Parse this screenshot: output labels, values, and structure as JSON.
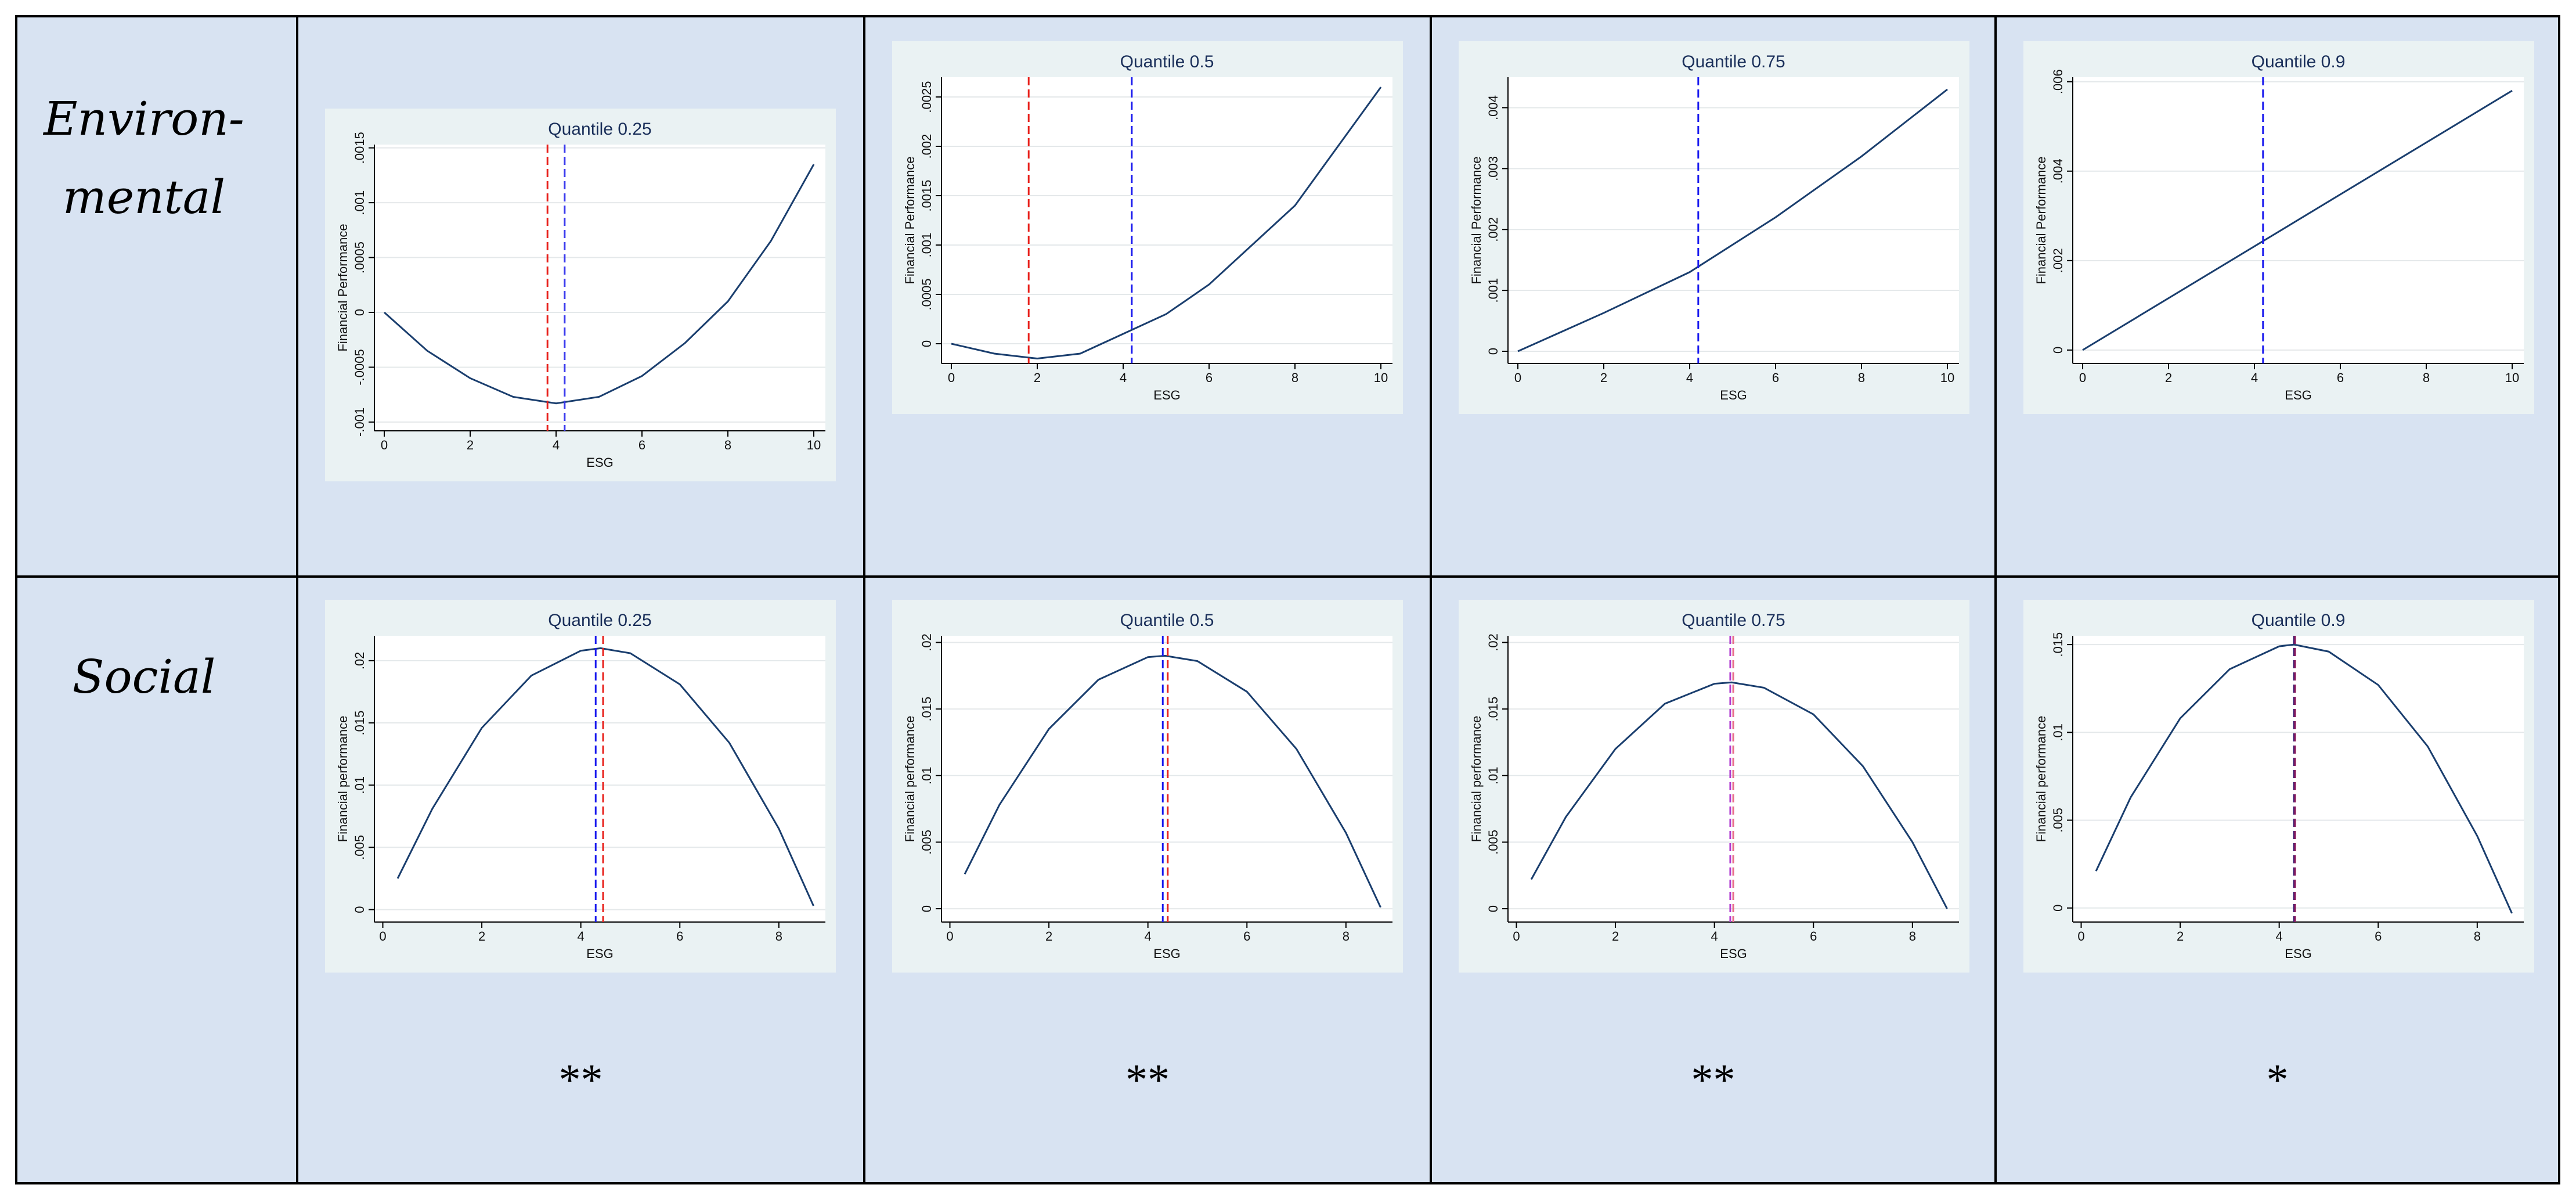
{
  "rows": [
    {
      "label": [
        "Environ-",
        "mental"
      ]
    },
    {
      "label": [
        "Social"
      ],
      "stars": [
        "**",
        "**",
        "**",
        "*"
      ]
    }
  ],
  "chart_data": [
    {
      "type": "line",
      "title": "Quantile 0.25",
      "x_label": "ESG",
      "y_label": "Financial Performance",
      "grid": true,
      "x": [
        0,
        1,
        2,
        3,
        4,
        5,
        6,
        7,
        8,
        9,
        10
      ],
      "series": [
        {
          "color": "#1a3e6e",
          "values": [
            0,
            -0.00035,
            -0.0006,
            -0.00077,
            -0.00083,
            -0.00077,
            -0.00058,
            -0.00028,
            0.0001,
            0.00065,
            0.00135
          ]
        }
      ],
      "vlines": [
        {
          "x": 3.8,
          "color": "#e8211c"
        },
        {
          "x": 4.2,
          "color": "#3a3aee"
        }
      ],
      "xlim": [
        -0.23,
        10.27
      ],
      "ylim": [
        -0.00108,
        0.00153
      ],
      "xticks": [
        0,
        2,
        4,
        6,
        8,
        10
      ],
      "yticks": [
        {
          "value": -0.001,
          "label": "-.001"
        },
        {
          "value": -0.0005,
          "label": "-.0005"
        },
        0,
        {
          "value": 0.0005,
          "label": ".0005"
        },
        {
          "value": 0.001,
          "label": ".001"
        },
        {
          "value": 0.0015,
          "label": ".0015"
        }
      ]
    },
    {
      "type": "line",
      "title": "Quantile 0.5",
      "x_label": "ESG",
      "y_label": "Financial Performance",
      "grid": true,
      "x": [
        0,
        1,
        2,
        3,
        4,
        5,
        6,
        7,
        8,
        9,
        10
      ],
      "series": [
        {
          "color": "#1a3e6e",
          "values": [
            0,
            -0.0001,
            -0.00015,
            -0.0001,
            0.0001,
            0.0003,
            0.0006,
            0.001,
            0.0014,
            0.002,
            0.0026
          ]
        }
      ],
      "vlines": [
        {
          "x": 1.8,
          "color": "#e8211c"
        },
        {
          "x": 4.2,
          "color": "#1a1aee"
        }
      ],
      "xlim": [
        -0.23,
        10.27
      ],
      "ylim": [
        -0.0002,
        0.0027
      ],
      "xticks": [
        0,
        2,
        4,
        6,
        8,
        10
      ],
      "yticks": [
        0,
        {
          "value": 0.0005,
          "label": ".0005"
        },
        {
          "value": 0.001,
          "label": ".001"
        },
        {
          "value": 0.0015,
          "label": ".0015"
        },
        {
          "value": 0.002,
          "label": ".002"
        },
        {
          "value": 0.0025,
          "label": ".0025"
        }
      ]
    },
    {
      "type": "line",
      "title": "Quantile 0.75",
      "x_label": "ESG",
      "y_label": "Financial Performance",
      "grid": true,
      "x": [
        0,
        2,
        4,
        6,
        8,
        10
      ],
      "series": [
        {
          "color": "#1a3e6e",
          "values": [
            0,
            0.00063,
            0.0013,
            0.0022,
            0.0032,
            0.0043
          ]
        }
      ],
      "vlines": [
        {
          "x": 4.2,
          "color": "#1a1aee"
        }
      ],
      "xlim": [
        -0.23,
        10.27
      ],
      "ylim": [
        -0.0002,
        0.0045
      ],
      "xticks": [
        0,
        2,
        4,
        6,
        8,
        10
      ],
      "yticks": [
        0,
        {
          "value": 0.001,
          "label": ".001"
        },
        {
          "value": 0.002,
          "label": ".002"
        },
        {
          "value": 0.003,
          "label": ".003"
        },
        {
          "value": 0.004,
          "label": ".004"
        }
      ]
    },
    {
      "type": "line",
      "title": "Quantile 0.9",
      "x_label": "ESG",
      "y_label": "Financial Performance",
      "grid": true,
      "x": [
        0,
        10
      ],
      "series": [
        {
          "color": "#1a3e6e",
          "values": [
            0,
            0.0058
          ]
        }
      ],
      "vlines": [
        {
          "x": 4.2,
          "color": "#1a1aee"
        }
      ],
      "xlim": [
        -0.23,
        10.27
      ],
      "ylim": [
        -0.0003,
        0.0061
      ],
      "xticks": [
        0,
        2,
        4,
        6,
        8,
        10
      ],
      "yticks": [
        0,
        {
          "value": 0.002,
          "label": ".002"
        },
        {
          "value": 0.004,
          "label": ".004"
        },
        {
          "value": 0.006,
          "label": ".006"
        }
      ]
    },
    {
      "type": "line",
      "title": "Quantile 0.25",
      "x_label": "ESG",
      "y_label": "Financial performance",
      "grid": true,
      "x": [
        0.3,
        1,
        2,
        3,
        4,
        4.4,
        5,
        6,
        7,
        8,
        8.7
      ],
      "series": [
        {
          "color": "#1a3e6e",
          "values": [
            0.0025,
            0.0081,
            0.0146,
            0.0188,
            0.0208,
            0.021,
            0.0206,
            0.0181,
            0.0134,
            0.0065,
            0.0003
          ]
        }
      ],
      "vlines": [
        {
          "x": 4.3,
          "color": "#1a1aee"
        },
        {
          "x": 4.45,
          "color": "#e8211c"
        }
      ],
      "xlim": [
        -0.17,
        8.94
      ],
      "ylim": [
        -0.001,
        0.022
      ],
      "xticks": [
        0,
        2,
        4,
        6,
        8
      ],
      "yticks": [
        0,
        {
          "value": 0.005,
          "label": ".005"
        },
        {
          "value": 0.01,
          "label": ".01"
        },
        {
          "value": 0.015,
          "label": ".015"
        },
        {
          "value": 0.02,
          "label": ".02"
        }
      ]
    },
    {
      "type": "line",
      "title": "Quantile 0.5",
      "x_label": "ESG",
      "y_label": "Financial performance",
      "grid": true,
      "x": [
        0.3,
        1,
        2,
        3,
        4,
        4.35,
        5,
        6,
        7,
        8,
        8.7
      ],
      "series": [
        {
          "color": "#1a3e6e",
          "values": [
            0.0026,
            0.0078,
            0.0135,
            0.0172,
            0.0189,
            0.019,
            0.0186,
            0.0163,
            0.012,
            0.0057,
            0.0001
          ]
        }
      ],
      "vlines": [
        {
          "x": 4.3,
          "color": "#1a1aee"
        },
        {
          "x": 4.4,
          "color": "#e8211c"
        }
      ],
      "xlim": [
        -0.17,
        8.94
      ],
      "ylim": [
        -0.001,
        0.0205
      ],
      "xticks": [
        0,
        2,
        4,
        6,
        8
      ],
      "yticks": [
        0,
        {
          "value": 0.005,
          "label": ".005"
        },
        {
          "value": 0.01,
          "label": ".01"
        },
        {
          "value": 0.015,
          "label": ".015"
        },
        {
          "value": 0.02,
          "label": ".02"
        }
      ]
    },
    {
      "type": "line",
      "title": "Quantile 0.75",
      "x_label": "ESG",
      "y_label": "Financial performance",
      "grid": true,
      "x": [
        0.3,
        1,
        2,
        3,
        4,
        4.35,
        5,
        6,
        7,
        8,
        8.7
      ],
      "series": [
        {
          "color": "#1a3e6e",
          "values": [
            0.0022,
            0.0069,
            0.012,
            0.0154,
            0.0169,
            0.017,
            0.0166,
            0.0146,
            0.0107,
            0.005,
            0
          ]
        }
      ],
      "vlines": [
        {
          "x": 4.32,
          "color": "#b03ad0"
        },
        {
          "x": 4.38,
          "color": "#e86a8a"
        }
      ],
      "xlim": [
        -0.17,
        8.94
      ],
      "ylim": [
        -0.001,
        0.0205
      ],
      "xticks": [
        0,
        2,
        4,
        6,
        8
      ],
      "yticks": [
        0,
        {
          "value": 0.005,
          "label": ".005"
        },
        {
          "value": 0.01,
          "label": ".01"
        },
        {
          "value": 0.015,
          "label": ".015"
        },
        {
          "value": 0.02,
          "label": ".02"
        }
      ]
    },
    {
      "type": "line",
      "title": "Quantile 0.9",
      "x_label": "ESG",
      "y_label": "Financial performance",
      "grid": true,
      "x": [
        0.3,
        1,
        2,
        3,
        4,
        4.3,
        5,
        6,
        7,
        8,
        8.7
      ],
      "series": [
        {
          "color": "#1a3e6e",
          "values": [
            0.0021,
            0.0063,
            0.0108,
            0.0136,
            0.0149,
            0.015,
            0.0146,
            0.0127,
            0.0092,
            0.0041,
            -0.0003
          ]
        }
      ],
      "vlines": [
        {
          "x": 4.3,
          "color": "#3a1a6e"
        },
        {
          "x": 4.32,
          "color": "#8a1a5e"
        }
      ],
      "xlim": [
        -0.17,
        8.94
      ],
      "ylim": [
        -0.0008,
        0.0155
      ],
      "xticks": [
        0,
        2,
        4,
        6,
        8
      ],
      "yticks": [
        0,
        {
          "value": 0.005,
          "label": ".005"
        },
        {
          "value": 0.01,
          "label": ".01"
        },
        {
          "value": 0.015,
          "label": ".015"
        }
      ]
    }
  ]
}
